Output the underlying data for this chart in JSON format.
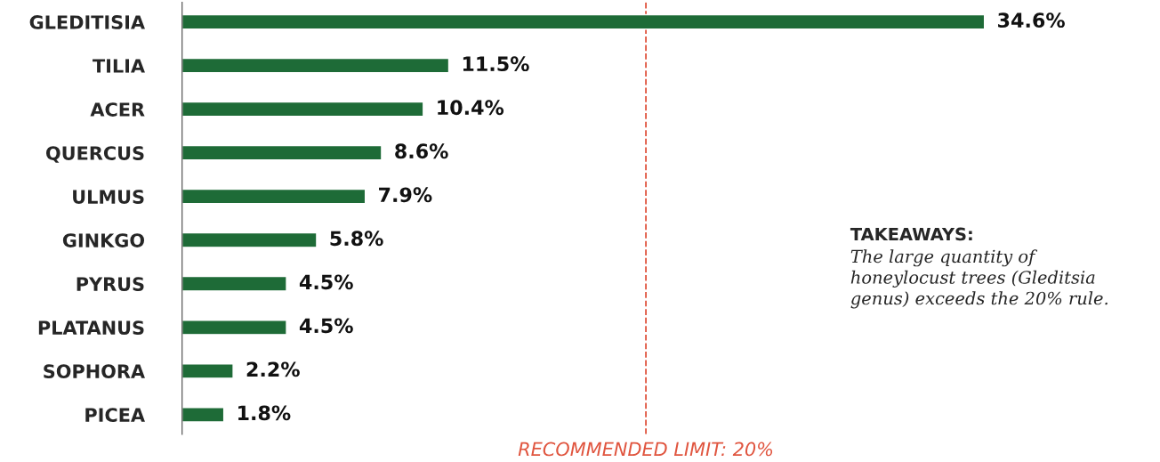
{
  "chart_data": {
    "type": "bar",
    "orientation": "horizontal",
    "categories": [
      "GLEDITISIA",
      "TILIA",
      "ACER",
      "QUERCUS",
      "ULMUS",
      "GINKGO",
      "PYRUS",
      "PLATANUS",
      "SOPHORA",
      "PICEA"
    ],
    "values": [
      34.6,
      11.5,
      10.4,
      8.6,
      7.9,
      5.8,
      4.5,
      4.5,
      2.2,
      1.8
    ],
    "value_labels": [
      "34.6%",
      "11.5%",
      "10.4%",
      "8.6%",
      "7.9%",
      "5.8%",
      "4.5%",
      "4.5%",
      "2.2%",
      "1.8%"
    ],
    "color": "#1e6b37",
    "ref_lines": [
      {
        "axis": "x",
        "value": 20,
        "label": "RECOMMENDED LIMIT: 20%",
        "color": "#e0553f",
        "line_style": "dashed"
      }
    ],
    "annotations": [
      "TAKEAWAYS:",
      "The large quantity of\nhoneylocust trees (Gleditsia\ngenus) exceeds the 20% rule."
    ],
    "grid": false,
    "legend": false
  }
}
